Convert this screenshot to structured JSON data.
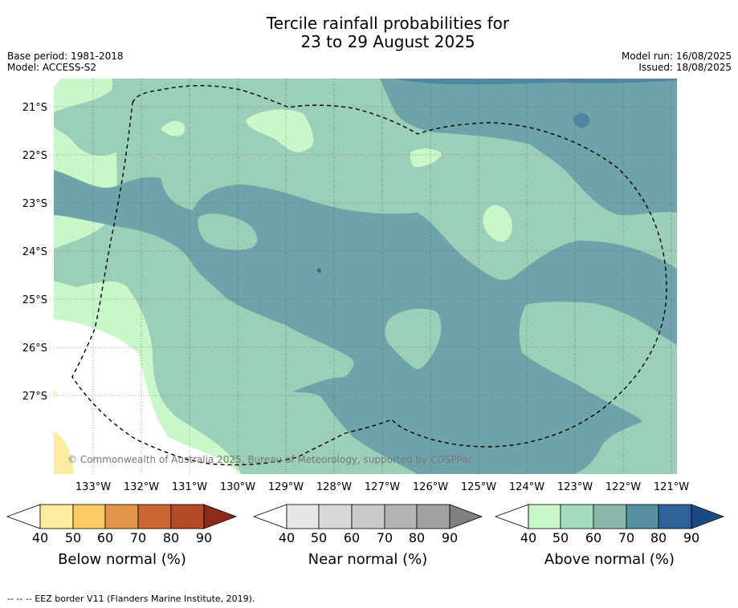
{
  "header": {
    "title_line1": "Tercile rainfall probabilities for",
    "title_line2": "23 to 29 August 2025",
    "base_period": "Base period: 1981-2018",
    "model": "Model: ACCESS-S2",
    "model_run": "Model run: 16/08/2025",
    "issued": "Issued: 18/08/2025"
  },
  "map": {
    "lat_labels": [
      "21°S",
      "22°S",
      "23°S",
      "24°S",
      "25°S",
      "26°S",
      "27°S"
    ],
    "lon_labels": [
      "133°W",
      "132°W",
      "131°W",
      "130°W",
      "129°W",
      "128°W",
      "127°W",
      "126°W",
      "125°W",
      "124°W",
      "123°W",
      "122°W",
      "121°W"
    ],
    "copyright": "© Commonwealth of Australia 2025, Bureau of Meteorology, supported by COSPPac",
    "colors": {
      "above_40_50": "#c9f7c9",
      "above_50_60": "#9ccfb8",
      "above_60_70": "#6ea4a9",
      "above_70_80": "#4f86a2",
      "below_40_50": "#feeb9f"
    }
  },
  "legends": [
    {
      "label": "Below normal (%)",
      "ticks": [
        "40",
        "50",
        "60",
        "70",
        "80",
        "90"
      ],
      "colors": [
        "#feeb9f",
        "#fdcc63",
        "#e0954a",
        "#cc6534",
        "#b04a27",
        "#8e2a1b"
      ]
    },
    {
      "label": "Near normal (%)",
      "ticks": [
        "40",
        "50",
        "60",
        "70",
        "80",
        "90"
      ],
      "colors": [
        "#e6e6e6",
        "#d8d8d8",
        "#c9c9c9",
        "#b5b5b5",
        "#a1a1a1",
        "#808080"
      ]
    },
    {
      "label": "Above normal (%)",
      "ticks": [
        "40",
        "50",
        "60",
        "70",
        "80",
        "90"
      ],
      "colors": [
        "#c9f7c9",
        "#a3dcbe",
        "#88b8ac",
        "#5590a0",
        "#2e6399",
        "#1c4a85"
      ]
    }
  ],
  "footer": {
    "eez_note": "-- -- -- EEZ border V11 (Flanders Marine Institute, 2019)."
  }
}
